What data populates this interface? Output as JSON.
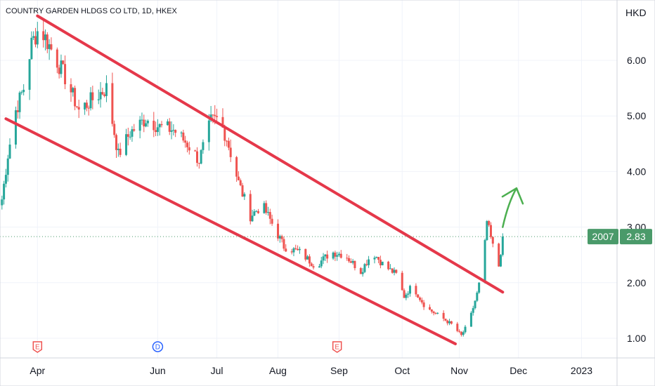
{
  "chart_data": {
    "type": "candlestick",
    "title": "COUNTRY GARDEN HLDGS CO LTD, 1D, HKEX",
    "currency": "HKD",
    "ylim": [
      0.7,
      7.0
    ],
    "yticks": [
      "6.00",
      "5.00",
      "4.00",
      "3.00",
      "2.00",
      "1.00"
    ],
    "ytick_values": [
      6,
      5,
      4,
      3,
      2,
      1
    ],
    "xticks": [
      "Apr",
      "Jun",
      "Jul",
      "Aug",
      "Sep",
      "Oct",
      "Nov",
      "Dec",
      "2023"
    ],
    "xtick_dates": [
      "2022-04-01",
      "2022-06-01",
      "2022-07-01",
      "2022-08-01",
      "2022-09-01",
      "2022-10-03",
      "2022-11-01",
      "2022-12-01",
      "2023-01-02"
    ],
    "xlim": [
      "2022-03-13",
      "2023-01-20"
    ],
    "last_price": "2.83",
    "last_price_value": 2.83,
    "last_price_label": "2007",
    "colors": {
      "up": "#26a69a",
      "down": "#ef5350",
      "trendline": "#e5384a",
      "arrow": "#4caf50",
      "badge": "#4a9a6a"
    },
    "events": [
      {
        "label": "E",
        "date": "2022-04-01",
        "color": "#ef5350"
      },
      {
        "label": "D",
        "date": "2022-06-01",
        "color": "#2962ff"
      },
      {
        "label": "E",
        "date": "2022-08-31",
        "color": "#ef5350"
      }
    ],
    "channel": {
      "upper": [
        [
          "2022-04-01",
          6.8
        ],
        [
          "2022-11-23",
          1.83
        ]
      ],
      "lower": [
        [
          "2022-03-16",
          4.95
        ],
        [
          "2022-10-30",
          0.9
        ]
      ]
    },
    "arrow": {
      "from": [
        "2022-11-23",
        3.0
      ],
      "to": [
        "2022-11-30",
        3.7
      ]
    },
    "anchors": [
      [
        "2022-03-14",
        3.5
      ],
      [
        "2022-03-17",
        4.3
      ],
      [
        "2022-03-21",
        5.1
      ],
      [
        "2022-03-25",
        5.5
      ],
      [
        "2022-03-29",
        6.3
      ],
      [
        "2022-04-02",
        6.6
      ],
      [
        "2022-04-08",
        6.2
      ],
      [
        "2022-04-15",
        5.7
      ],
      [
        "2022-04-22",
        5.1
      ],
      [
        "2022-04-29",
        5.3
      ],
      [
        "2022-05-06",
        5.5
      ],
      [
        "2022-05-12",
        4.3
      ],
      [
        "2022-05-18",
        4.7
      ],
      [
        "2022-05-26",
        4.95
      ],
      [
        "2022-06-02",
        4.8
      ],
      [
        "2022-06-09",
        4.75
      ],
      [
        "2022-06-16",
        4.5
      ],
      [
        "2022-06-22",
        4.2
      ],
      [
        "2022-06-28",
        4.9
      ],
      [
        "2022-07-02",
        4.95
      ],
      [
        "2022-07-06",
        4.6
      ],
      [
        "2022-07-12",
        3.8
      ],
      [
        "2022-07-18",
        3.2
      ],
      [
        "2022-07-24",
        3.4
      ],
      [
        "2022-07-30",
        3.0
      ],
      [
        "2022-08-04",
        2.65
      ],
      [
        "2022-08-12",
        2.55
      ],
      [
        "2022-08-20",
        2.3
      ],
      [
        "2022-08-28",
        2.55
      ],
      [
        "2022-09-04",
        2.5
      ],
      [
        "2022-09-12",
        2.2
      ],
      [
        "2022-09-18",
        2.55
      ],
      [
        "2022-09-24",
        2.3
      ],
      [
        "2022-09-30",
        2.15
      ],
      [
        "2022-10-04",
        1.75
      ],
      [
        "2022-10-08",
        1.95
      ],
      [
        "2022-10-15",
        1.55
      ],
      [
        "2022-10-22",
        1.4
      ],
      [
        "2022-10-28",
        1.25
      ],
      [
        "2022-11-02",
        1.05
      ],
      [
        "2022-11-06",
        1.3
      ],
      [
        "2022-11-10",
        1.8
      ],
      [
        "2022-11-13",
        2.3
      ],
      [
        "2022-11-15",
        3.1
      ],
      [
        "2022-11-18",
        2.65
      ],
      [
        "2022-11-21",
        2.3
      ],
      [
        "2022-11-23",
        2.83
      ]
    ]
  }
}
